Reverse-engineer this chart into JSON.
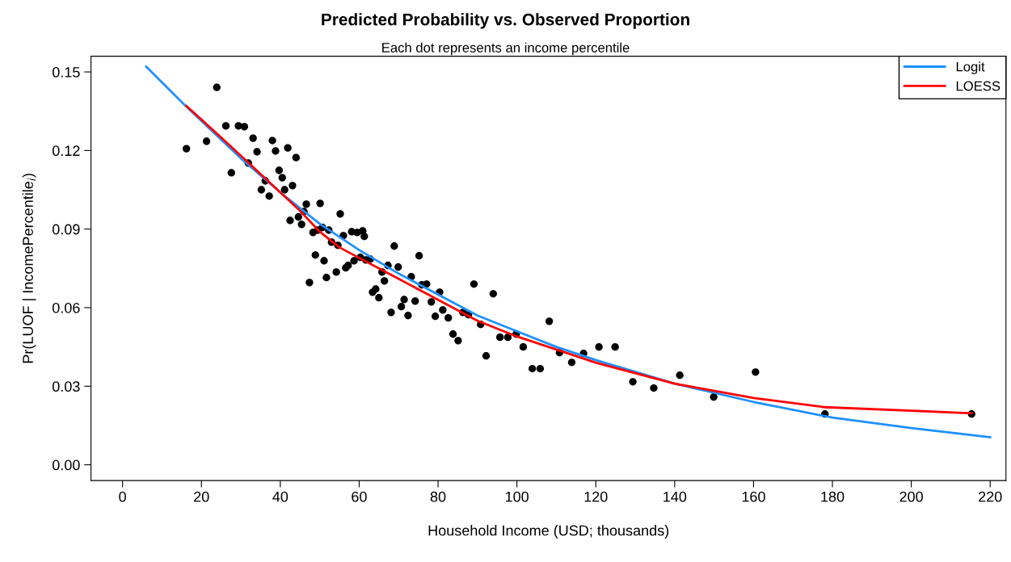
{
  "chart_data": {
    "type": "scatter",
    "title": "Predicted Probability vs. Observed Proportion",
    "subtitle": "Each dot represents an income percentile",
    "xlabel": "Household Income (USD; thousands)",
    "ylabel": "Pr(LUOF | IncomePercentile$_{i}$)",
    "xlim": [
      -8,
      224
    ],
    "ylim": [
      -0.006,
      0.156
    ],
    "xticks": [
      0,
      20,
      40,
      60,
      80,
      100,
      120,
      140,
      160,
      180,
      200,
      220
    ],
    "yticks": [
      {
        "value": 0,
        "label": "0.00"
      },
      {
        "value": 0.03,
        "label": "0.03"
      },
      {
        "value": 0.06,
        "label": "0.06"
      },
      {
        "value": 0.09,
        "label": "0.09"
      },
      {
        "value": 0.12,
        "label": "0.12"
      },
      {
        "value": 0.15,
        "label": "0.15"
      }
    ],
    "grid": false,
    "legend": "top right",
    "series": [
      {
        "color": "#000000",
        "marker": "circle",
        "x": [
          16.2,
          21.3,
          23.9,
          26.2,
          27.6,
          29.4,
          30.9,
          31.9,
          33.1,
          34.1,
          35.2,
          36.2,
          37.2,
          38.0,
          38.8,
          39.7,
          40.5,
          41.1,
          41.9,
          43.1,
          44.0,
          42.5,
          44.6,
          45.4,
          46.0,
          46.6,
          47.4,
          48.3,
          48.9,
          49.5,
          50.1,
          50.7,
          51.1,
          51.7,
          52.3,
          53.0,
          54.2,
          54.6,
          55.2,
          56.0,
          56.6,
          57.2,
          58.1,
          58.7,
          59.5,
          60.3,
          60.9,
          61.3,
          61.7,
          62.8,
          63.4,
          64.2,
          65.0,
          65.8,
          66.4,
          67.3,
          68.1,
          68.9,
          69.9,
          70.7,
          71.4,
          72.4,
          73.2,
          74.2,
          75.2,
          75.9,
          77.1,
          78.3,
          79.3,
          80.4,
          81.2,
          82.6,
          83.8,
          85.1,
          86.3,
          87.7,
          89.1,
          90.8,
          92.2,
          94.0,
          95.7,
          97.7,
          99.8,
          101.6,
          103.9,
          105.9,
          108.2,
          110.8,
          113.9,
          116.9,
          120.8,
          124.9,
          129.4,
          134.7,
          141.3,
          149.9,
          160.5,
          178.1,
          215.3
        ],
        "values": [
          0.1207,
          0.1235,
          0.1441,
          0.1294,
          0.1115,
          0.1294,
          0.1291,
          0.1152,
          0.1247,
          0.1195,
          0.105,
          0.1084,
          0.1026,
          0.1238,
          0.1198,
          0.1124,
          0.1096,
          0.105,
          0.121,
          0.1066,
          0.1173,
          0.0933,
          0.0946,
          0.0918,
          0.0967,
          0.0995,
          0.0696,
          0.0887,
          0.0801,
          0.0896,
          0.0998,
          0.0906,
          0.0779,
          0.0715,
          0.0896,
          0.085,
          0.0736,
          0.0838,
          0.0958,
          0.0875,
          0.0752,
          0.0761,
          0.089,
          0.0779,
          0.0887,
          0.0792,
          0.0893,
          0.0872,
          0.0782,
          0.0785,
          0.0659,
          0.0671,
          0.0638,
          0.0736,
          0.0702,
          0.0761,
          0.0582,
          0.0835,
          0.0755,
          0.0604,
          0.0631,
          0.057,
          0.0718,
          0.0625,
          0.0798,
          0.0687,
          0.069,
          0.0622,
          0.0567,
          0.0659,
          0.0591,
          0.0561,
          0.0499,
          0.0474,
          0.0582,
          0.0573,
          0.069,
          0.0536,
          0.0416,
          0.0653,
          0.0487,
          0.0487,
          0.0499,
          0.045,
          0.0367,
          0.0367,
          0.0548,
          0.0428,
          0.0391,
          0.0425,
          0.045,
          0.045,
          0.0317,
          0.0293,
          0.0342,
          0.0259,
          0.0354,
          0.0194,
          0.0194
        ]
      },
      {
        "type": "line",
        "name": "Logit",
        "color": "#1e90ff",
        "line_style": "solid",
        "x": [
          6,
          16,
          30,
          40,
          50,
          60,
          70,
          80,
          90,
          100,
          110,
          120,
          140,
          160,
          180,
          200,
          220
        ],
        "values": [
          0.152,
          0.137,
          0.117,
          0.104,
          0.092,
          0.082,
          0.073,
          0.065,
          0.057,
          0.051,
          0.045,
          0.04,
          0.031,
          0.024,
          0.018,
          0.014,
          0.0105
        ]
      },
      {
        "type": "line",
        "name": "LOESS",
        "color": "#ff0000",
        "line_style": "solid",
        "x": [
          16.2,
          25,
          35,
          45,
          50,
          55,
          60,
          70,
          80,
          90,
          100,
          110,
          120,
          140,
          160,
          178,
          215.3
        ],
        "values": [
          0.137,
          0.125,
          0.111,
          0.097,
          0.089,
          0.083,
          0.079,
          0.071,
          0.063,
          0.055,
          0.049,
          0.044,
          0.039,
          0.031,
          0.0255,
          0.022,
          0.0197
        ]
      }
    ]
  }
}
